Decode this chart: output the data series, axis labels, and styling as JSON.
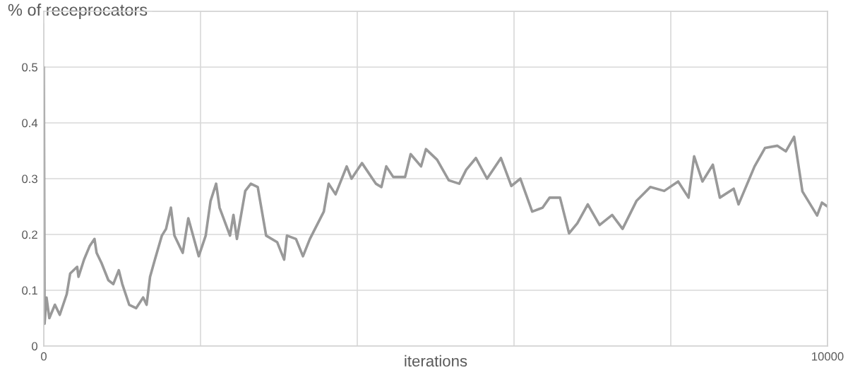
{
  "chart_data": {
    "type": "line",
    "xlabel": "iterations",
    "ylabel": "% of receprocators",
    "xlim": [
      0,
      10000
    ],
    "xticks": [
      0,
      {
        "value": 2000,
        "label": null
      },
      {
        "value": 4000,
        "label": null
      },
      {
        "value": 6000,
        "label": null
      },
      {
        "value": 8000,
        "label": null
      },
      10000
    ],
    "ylim": [
      0,
      0.6
    ],
    "yticks": [
      0,
      0.1,
      0.2,
      0.3,
      0.4,
      0.5,
      {
        "value": 0.6,
        "label": null
      }
    ],
    "grid": true,
    "marker": "none",
    "line_style": "solid",
    "series": [
      {
        "color": "#999999",
        "x": [
          0,
          10,
          35,
          71,
          142,
          204,
          293,
          337,
          426,
          443,
          514,
          585,
          647,
          674,
          736,
          824,
          887,
          957,
          1002,
          1090,
          1179,
          1268,
          1312,
          1356,
          1418,
          1507,
          1560,
          1622,
          1667,
          1773,
          1844,
          1977,
          2066,
          2128,
          2199,
          2243,
          2376,
          2420,
          2464,
          2571,
          2642,
          2730,
          2837,
          2979,
          3067,
          3103,
          3218,
          3307,
          3395,
          3573,
          3635,
          3723,
          3865,
          3927,
          4060,
          4237,
          4308,
          4370,
          4459,
          4610,
          4681,
          4814,
          4876,
          5018,
          5168,
          5301,
          5390,
          5514,
          5656,
          5833,
          5966,
          6081,
          6232,
          6365,
          6454,
          6587,
          6702,
          6808,
          6941,
          7092,
          7252,
          7385,
          7562,
          7739,
          7916,
          8094,
          8227,
          8298,
          8404,
          8537,
          8626,
          8803,
          8865,
          9069,
          9202,
          9361,
          9468,
          9574,
          9680,
          9867,
          9929,
          10000
        ],
        "values": [
          0.5,
          0.04,
          0.087,
          0.05,
          0.074,
          0.056,
          0.093,
          0.13,
          0.142,
          0.124,
          0.155,
          0.179,
          0.192,
          0.167,
          0.149,
          0.118,
          0.111,
          0.136,
          0.111,
          0.074,
          0.068,
          0.087,
          0.074,
          0.124,
          0.155,
          0.198,
          0.21,
          0.248,
          0.198,
          0.167,
          0.229,
          0.161,
          0.198,
          0.26,
          0.291,
          0.248,
          0.198,
          0.235,
          0.192,
          0.278,
          0.291,
          0.285,
          0.198,
          0.186,
          0.155,
          0.198,
          0.192,
          0.161,
          0.192,
          0.241,
          0.291,
          0.272,
          0.322,
          0.3,
          0.328,
          0.291,
          0.285,
          0.322,
          0.303,
          0.303,
          0.344,
          0.322,
          0.353,
          0.334,
          0.297,
          0.291,
          0.316,
          0.337,
          0.3,
          0.337,
          0.287,
          0.3,
          0.241,
          0.248,
          0.266,
          0.266,
          0.202,
          0.22,
          0.254,
          0.217,
          0.235,
          0.21,
          0.26,
          0.285,
          0.278,
          0.295,
          0.266,
          0.34,
          0.295,
          0.325,
          0.266,
          0.282,
          0.254,
          0.322,
          0.355,
          0.359,
          0.349,
          0.375,
          0.277,
          0.234,
          0.257,
          0.25
        ]
      }
    ]
  }
}
